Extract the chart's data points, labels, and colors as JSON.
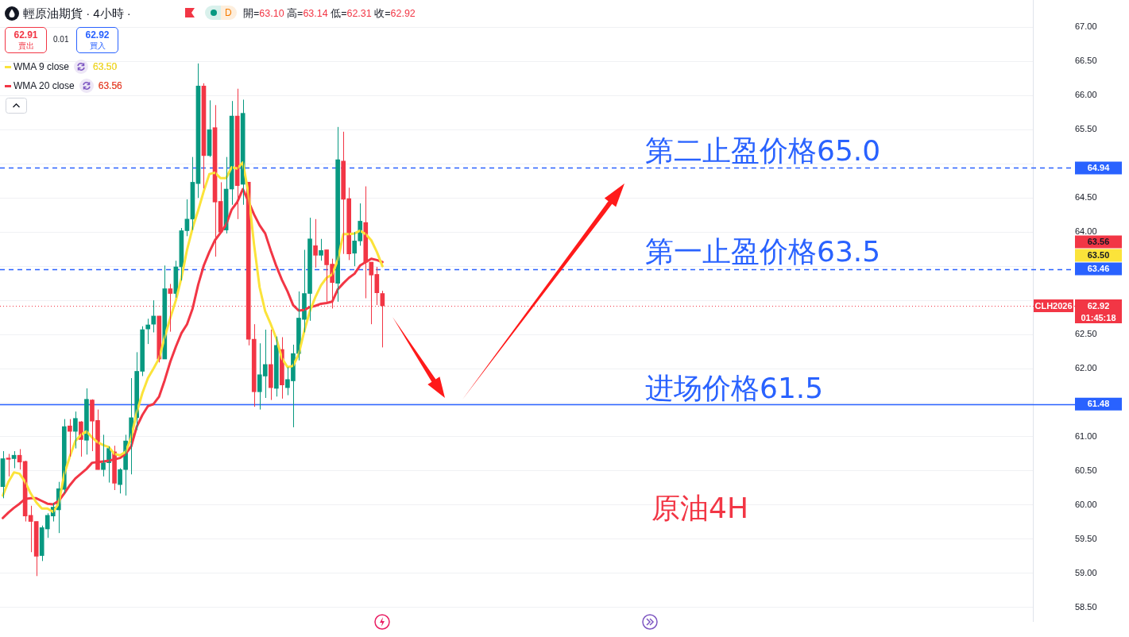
{
  "chart_data": {
    "type": "candlestick",
    "title": "輕原油期貨 · 4小時 ·",
    "subtitle": "開=63.10 高=63.14 低=62.31 收=62.92",
    "categories": [
      null,
      null,
      null,
      null,
      null,
      null,
      null,
      null,
      null,
      null,
      null,
      null,
      null,
      null,
      null,
      null,
      null,
      null,
      null,
      null,
      null,
      null,
      null,
      null,
      null,
      null,
      null,
      null,
      null,
      null,
      null,
      null,
      null,
      null,
      null,
      null,
      null,
      null,
      null,
      null,
      null,
      null,
      null,
      null,
      null,
      null,
      null,
      null,
      null,
      null,
      null,
      null,
      null,
      null,
      null,
      null,
      null,
      null,
      null,
      null,
      null,
      null,
      null,
      null,
      null,
      null,
      null,
      null,
      null,
      null,
      null,
      null,
      null,
      null,
      null,
      null,
      null,
      null,
      null,
      null,
      null,
      null,
      null,
      null,
      null,
      null,
      null,
      null,
      null,
      null,
      null,
      null,
      null,
      null,
      null,
      null,
      null,
      null,
      null,
      null,
      null,
      null,
      null,
      null,
      null,
      null,
      null,
      null,
      null,
      null,
      null,
      null,
      null,
      null,
      null,
      null,
      null,
      null,
      null,
      null,
      null,
      null,
      null,
      null,
      null,
      null,
      null,
      null,
      null,
      null,
      null,
      null,
      null,
      null,
      null,
      null,
      null,
      null,
      null,
      null,
      null,
      null,
      null,
      null,
      null,
      null,
      null,
      null,
      null,
      null,
      null,
      null,
      null,
      null,
      null,
      null,
      null,
      null,
      null,
      null,
      null,
      null,
      null,
      null,
      null,
      null,
      null,
      null,
      null,
      null,
      null,
      null,
      null,
      null,
      null,
      null,
      null,
      null,
      null,
      null,
      null,
      null,
      null,
      null,
      null
    ],
    "ohlc": [
      [
        60.27,
        60.79,
        60.1,
        60.68
      ],
      [
        60.69,
        60.75,
        60.42,
        60.67
      ],
      [
        60.68,
        60.79,
        60.54,
        60.73
      ],
      [
        60.73,
        60.82,
        60.52,
        60.63
      ],
      [
        60.64,
        60.65,
        59.76,
        59.84
      ],
      [
        59.85,
        59.99,
        59.31,
        59.76
      ],
      [
        59.76,
        59.76,
        58.96,
        59.25
      ],
      [
        59.26,
        59.7,
        59.18,
        59.67
      ],
      [
        59.65,
        59.88,
        59.52,
        59.85
      ],
      [
        59.84,
        60.03,
        59.76,
        59.97
      ],
      [
        59.93,
        60.34,
        59.59,
        60.24
      ],
      [
        60.23,
        61.26,
        60.17,
        61.15
      ],
      [
        61.16,
        61.26,
        60.71,
        61.08
      ],
      [
        61.08,
        61.37,
        60.83,
        61.27
      ],
      [
        61.22,
        61.23,
        60.71,
        60.96
      ],
      [
        60.95,
        61.71,
        60.74,
        61.55
      ],
      [
        61.54,
        61.55,
        60.79,
        61.23
      ],
      [
        61.24,
        61.4,
        60.52,
        60.52
      ],
      [
        60.52,
        61.03,
        60.42,
        60.62
      ],
      [
        60.62,
        60.86,
        60.33,
        60.83
      ],
      [
        60.78,
        60.87,
        60.22,
        60.32
      ],
      [
        60.3,
        60.54,
        60.17,
        60.52
      ],
      [
        60.52,
        61.03,
        60.14,
        60.94
      ],
      [
        60.92,
        61.86,
        60.45,
        61.28
      ],
      [
        61.28,
        62.24,
        61.1,
        61.96
      ],
      [
        61.96,
        62.62,
        61.89,
        62.57
      ],
      [
        62.58,
        62.73,
        62.36,
        62.64
      ],
      [
        62.65,
        63.0,
        62.53,
        62.77
      ],
      [
        62.77,
        62.77,
        62.09,
        62.14
      ],
      [
        62.14,
        63.51,
        62.14,
        63.17
      ],
      [
        63.17,
        63.24,
        62.54,
        63.1
      ],
      [
        63.1,
        63.58,
        63.04,
        63.49
      ],
      [
        63.49,
        64.06,
        63.29,
        64.02
      ],
      [
        64.02,
        64.48,
        63.94,
        64.19
      ],
      [
        64.19,
        65.1,
        64.03,
        64.73
      ],
      [
        64.71,
        66.47,
        64.5,
        66.14
      ],
      [
        66.14,
        66.18,
        64.64,
        65.12
      ],
      [
        65.12,
        65.93,
        65.1,
        65.5
      ],
      [
        65.53,
        65.86,
        63.64,
        64.44
      ],
      [
        64.45,
        64.73,
        64.0,
        64.0
      ],
      [
        64.03,
        65.1,
        63.98,
        64.63
      ],
      [
        64.63,
        65.92,
        64.4,
        65.7
      ],
      [
        65.7,
        66.1,
        64.19,
        64.68
      ],
      [
        64.7,
        65.94,
        64.4,
        65.74
      ],
      [
        64.73,
        64.73,
        62.34,
        62.43
      ],
      [
        62.43,
        62.65,
        61.44,
        61.66
      ],
      [
        61.66,
        62.37,
        61.4,
        61.91
      ],
      [
        61.89,
        62.57,
        61.57,
        62.06
      ],
      [
        62.06,
        62.57,
        61.54,
        61.72
      ],
      [
        61.71,
        62.47,
        61.59,
        62.34
      ],
      [
        62.28,
        62.46,
        61.56,
        61.76
      ],
      [
        61.72,
        62.02,
        61.61,
        61.84
      ],
      [
        61.82,
        62.35,
        61.14,
        62.22
      ],
      [
        62.22,
        63.13,
        62.12,
        62.74
      ],
      [
        62.72,
        63.74,
        62.53,
        63.1
      ],
      [
        63.1,
        64.21,
        62.7,
        63.9
      ],
      [
        63.8,
        64.19,
        63.48,
        63.66
      ],
      [
        63.66,
        63.9,
        63.58,
        63.73
      ],
      [
        63.74,
        63.74,
        62.98,
        63.52
      ],
      [
        63.53,
        63.61,
        62.88,
        63.26
      ],
      [
        63.25,
        65.54,
        62.98,
        65.06
      ],
      [
        65.04,
        65.47,
        63.68,
        64.48
      ],
      [
        64.49,
        64.65,
        63.59,
        63.68
      ],
      [
        63.69,
        64.0,
        63.5,
        63.87
      ],
      [
        63.87,
        64.42,
        63.8,
        64.16
      ],
      [
        64.14,
        64.67,
        63.03,
        63.56
      ],
      [
        63.56,
        63.56,
        62.65,
        63.37
      ],
      [
        63.38,
        63.49,
        62.93,
        63.11
      ],
      [
        63.1,
        63.14,
        62.31,
        62.92
      ],
      null,
      null,
      null,
      null,
      null,
      null,
      null,
      null,
      null,
      null,
      null,
      null,
      null,
      null,
      null,
      null,
      null,
      null,
      null,
      null,
      null,
      null,
      null,
      null,
      null,
      null,
      null,
      null,
      null,
      null,
      null,
      null,
      null,
      null,
      null,
      null,
      null,
      null,
      null,
      null,
      null,
      null,
      null,
      null,
      null,
      null,
      null,
      null,
      null,
      null,
      null,
      null,
      null,
      null,
      null,
      null,
      null,
      null,
      null,
      null,
      null,
      null,
      null,
      null,
      null,
      null,
      null,
      null,
      null,
      null,
      null,
      null,
      null,
      null,
      null,
      null,
      null,
      null,
      null,
      null,
      null,
      null,
      null,
      null,
      null,
      null,
      null,
      null,
      null,
      null,
      null,
      null,
      null,
      null,
      null,
      null,
      null,
      null,
      null,
      null,
      null,
      null,
      null,
      null,
      null,
      null,
      null,
      null,
      null,
      null,
      null,
      null,
      null,
      null,
      null,
      null
    ],
    "series": [
      {
        "type": "line",
        "name": "WMA 9 close",
        "color": "#fbe33a",
        "values": [
          60.14,
          60.34,
          60.48,
          60.46,
          60.34,
          60.17,
          60.04,
          59.95,
          59.95,
          59.9,
          60.02,
          60.45,
          60.71,
          60.94,
          61.03,
          61.08,
          60.99,
          60.92,
          60.88,
          60.85,
          60.75,
          60.73,
          60.78,
          60.99,
          61.36,
          61.64,
          61.86,
          62.0,
          62.15,
          62.46,
          62.74,
          63.0,
          63.33,
          63.74,
          64.06,
          64.32,
          64.6,
          64.85,
          64.87,
          64.79,
          64.79,
          64.95,
          64.93,
          65.02,
          64.57,
          63.82,
          63.19,
          62.84,
          62.65,
          62.44,
          62.15,
          62.02,
          62.04,
          62.21,
          62.55,
          62.84,
          63.05,
          63.22,
          63.33,
          63.38,
          63.59,
          63.97,
          63.97,
          63.98,
          64.02,
          63.97,
          63.88,
          63.71,
          63.5,
          null,
          null,
          null,
          null,
          null,
          null,
          null,
          null,
          null,
          null,
          null,
          null,
          null,
          null,
          null,
          null,
          null,
          null,
          null,
          null,
          null,
          null,
          null,
          null,
          null,
          null,
          null,
          null,
          null,
          null,
          null,
          null,
          null,
          null,
          null,
          null,
          null,
          null,
          null,
          null,
          null,
          null,
          null,
          null,
          null,
          null,
          null,
          null,
          null,
          null,
          null,
          null,
          null,
          null,
          null,
          null,
          null,
          null,
          null,
          null,
          null,
          null,
          null,
          null,
          null,
          null,
          null,
          null,
          null,
          null,
          null,
          null,
          null,
          null,
          null,
          null,
          null,
          null,
          null,
          null,
          null,
          null,
          null,
          null,
          null,
          null,
          null,
          null,
          null,
          null,
          null,
          null,
          null,
          null,
          null,
          null,
          null,
          null,
          null,
          null,
          null,
          null,
          null,
          null,
          null,
          null,
          null,
          null,
          null,
          null,
          null,
          null,
          null,
          null,
          null,
          null
        ]
      },
      {
        "type": "line",
        "name": "WMA 20 close",
        "color": "#f23645",
        "values": [
          59.81,
          59.89,
          59.96,
          60.02,
          60.09,
          60.1,
          60.1,
          60.06,
          60.02,
          60.01,
          60.06,
          60.17,
          60.29,
          60.39,
          60.46,
          60.53,
          60.62,
          60.63,
          60.64,
          60.65,
          60.67,
          60.69,
          60.75,
          60.86,
          61.15,
          61.32,
          61.45,
          61.48,
          61.59,
          61.83,
          62.1,
          62.32,
          62.52,
          62.65,
          62.88,
          63.23,
          63.51,
          63.71,
          63.88,
          63.99,
          64.11,
          64.33,
          64.44,
          64.63,
          64.45,
          64.26,
          64.1,
          63.98,
          63.73,
          63.5,
          63.3,
          63.13,
          62.93,
          62.85,
          62.86,
          62.9,
          62.92,
          62.95,
          62.96,
          62.98,
          63.16,
          63.25,
          63.33,
          63.39,
          63.51,
          63.56,
          63.61,
          63.59,
          63.56,
          null,
          null,
          null,
          null,
          null,
          null,
          null,
          null,
          null,
          null,
          null,
          null,
          null,
          null,
          null,
          null,
          null,
          null,
          null,
          null,
          null,
          null,
          null,
          null,
          null,
          null,
          null,
          null,
          null,
          null,
          null,
          null,
          null,
          null,
          null,
          null,
          null,
          null,
          null,
          null,
          null,
          null,
          null,
          null,
          null,
          null,
          null,
          null,
          null,
          null,
          null,
          null,
          null,
          null,
          null,
          null,
          null,
          null,
          null,
          null,
          null,
          null,
          null,
          null,
          null,
          null,
          null,
          null,
          null,
          null,
          null,
          null,
          null,
          null,
          null,
          null,
          null,
          null,
          null,
          null,
          null,
          null,
          null,
          null,
          null,
          null,
          null,
          null,
          null,
          null,
          null,
          null,
          null,
          null,
          null,
          null,
          null,
          null,
          null,
          null,
          null,
          null,
          null,
          null,
          null,
          null,
          null,
          null,
          null,
          null,
          null,
          null,
          null,
          null,
          null,
          null
        ]
      }
    ],
    "ylim": [
      58.3,
      67.4
    ],
    "yticks": [
      {
        "value": 58.5,
        "label": "58.50"
      },
      {
        "value": 59,
        "label": "59.00"
      },
      {
        "value": 59.5,
        "label": "59.50"
      },
      {
        "value": 60,
        "label": "60.00"
      },
      {
        "value": 60.5,
        "label": "60.50"
      },
      {
        "value": 61,
        "label": "61.00"
      },
      {
        "value": 61.5,
        "label": null
      },
      {
        "value": 62,
        "label": "62.00"
      },
      {
        "value": 62.5,
        "label": "62.50"
      },
      {
        "value": 63,
        "label": null
      },
      {
        "value": 63.5,
        "label": null
      },
      {
        "value": 64,
        "label": "64.00"
      },
      {
        "value": 64.5,
        "label": "64.50"
      },
      {
        "value": 65,
        "label": null
      },
      {
        "value": 65.5,
        "label": "65.50"
      },
      {
        "value": 66,
        "label": "66.00"
      },
      {
        "value": 66.5,
        "label": "66.50"
      },
      {
        "value": 67,
        "label": "67.00"
      }
    ],
    "grid": "y",
    "legend": "top left",
    "ref_lines": [
      {
        "axis": "y",
        "value": 64.94,
        "label": "64.94",
        "color": "#2962ff",
        "line_style": "dashed"
      },
      {
        "axis": "y",
        "value": 63.46,
        "label": "63.46",
        "color": "#2962ff",
        "line_style": "dashed"
      },
      {
        "axis": "y",
        "value": 61.48,
        "label": "61.48",
        "color": "#2962ff",
        "line_style": "solid"
      },
      {
        "axis": "y",
        "value": 62.92,
        "label": "62.92",
        "color": "#f23645",
        "line_style": "dotted"
      }
    ],
    "annotations": [
      "D",
      "62.91",
      "賣出",
      "0.01",
      "62.92",
      "買入",
      "CLH2026",
      "01:45:18",
      "第二止盈价格65.0",
      "第一止盈价格63.5",
      "进场价格61.5",
      "原油4H",
      "63.50",
      "63.56",
      "63.50",
      "63.56"
    ]
  }
}
